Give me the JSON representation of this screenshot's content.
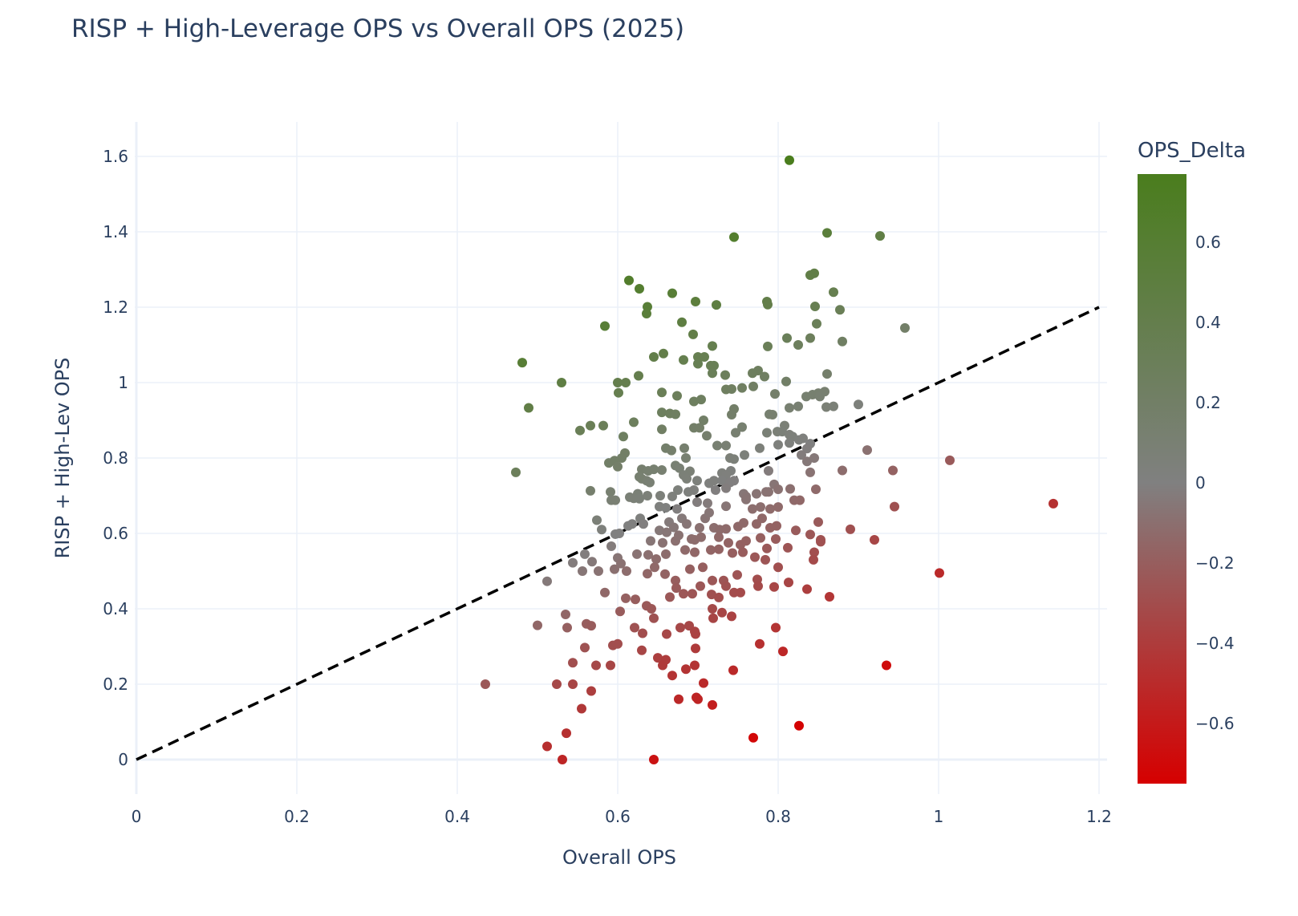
{
  "chart_data": {
    "type": "scatter",
    "title": "RISP + High-Leverage OPS vs Overall OPS (2025)",
    "xlabel": "Overall OPS",
    "ylabel": "RISP + High-Lev OPS",
    "xlim": [
      0,
      1.21
    ],
    "ylim": [
      -0.1,
      1.7
    ],
    "xticks": [
      0,
      0.2,
      0.4,
      0.6,
      0.8,
      1,
      1.2
    ],
    "xtick_labels": [
      "0",
      "0.2",
      "0.4",
      "0.6",
      "0.8",
      "1",
      "1.2"
    ],
    "yticks": [
      0,
      0.2,
      0.4,
      0.6,
      0.8,
      1,
      1.2,
      1.4,
      1.6
    ],
    "ytick_labels": [
      "0",
      "0.2",
      "0.4",
      "0.6",
      "0.8",
      "1",
      "1.2",
      "1.4",
      "1.6"
    ],
    "grid": true,
    "reference_line": {
      "x": [
        0,
        1.2
      ],
      "y": [
        0,
        1.2
      ],
      "style": "dashed",
      "color": "#000000"
    },
    "colorbar": {
      "title": "OPS_Delta",
      "min": -0.75,
      "max": 0.77,
      "ticks": [
        0.6,
        0.4,
        0.2,
        0,
        -0.2,
        -0.4,
        -0.6
      ],
      "tick_labels": [
        "0.6",
        "0.4",
        "0.2",
        "0",
        "−0.2",
        "−0.4",
        "−0.6"
      ],
      "colors": {
        "low": "#d60000",
        "mid": "#808080",
        "high": "#4a7d1d"
      }
    },
    "points": [
      [
        0.814,
        1.59
      ],
      [
        0.745,
        1.386
      ],
      [
        0.861,
        1.397
      ],
      [
        0.927,
        1.389
      ],
      [
        0.845,
        1.29
      ],
      [
        0.84,
        1.285
      ],
      [
        0.614,
        1.271
      ],
      [
        0.627,
        1.249
      ],
      [
        0.668,
        1.237
      ],
      [
        0.869,
        1.24
      ],
      [
        0.697,
        1.215
      ],
      [
        0.786,
        1.215
      ],
      [
        0.723,
        1.206
      ],
      [
        0.637,
        1.201
      ],
      [
        0.787,
        1.207
      ],
      [
        0.846,
        1.202
      ],
      [
        0.877,
        1.193
      ],
      [
        0.636,
        1.183
      ],
      [
        0.68,
        1.16
      ],
      [
        0.584,
        1.15
      ],
      [
        0.848,
        1.156
      ],
      [
        0.958,
        1.145
      ],
      [
        0.694,
        1.128
      ],
      [
        0.811,
        1.118
      ],
      [
        0.84,
        1.118
      ],
      [
        0.88,
        1.109
      ],
      [
        0.718,
        1.097
      ],
      [
        0.787,
        1.096
      ],
      [
        0.825,
        1.1
      ],
      [
        0.657,
        1.077
      ],
      [
        0.645,
        1.068
      ],
      [
        0.7,
        1.068
      ],
      [
        0.708,
        1.068
      ],
      [
        0.682,
        1.06
      ],
      [
        0.716,
        1.045
      ],
      [
        0.72,
        1.045
      ],
      [
        0.7,
        1.05
      ],
      [
        0.481,
        1.053
      ],
      [
        0.734,
        1.02
      ],
      [
        0.626,
        1.018
      ],
      [
        0.718,
        1.025
      ],
      [
        0.775,
        1.032
      ],
      [
        0.768,
        1.025
      ],
      [
        0.783,
        1.016
      ],
      [
        0.861,
        1.023
      ],
      [
        0.53,
        1.0
      ],
      [
        0.6,
        1.0
      ],
      [
        0.61,
        1.0
      ],
      [
        0.81,
        1.003
      ],
      [
        0.601,
        0.973
      ],
      [
        0.655,
        0.974
      ],
      [
        0.674,
        0.965
      ],
      [
        0.735,
        0.982
      ],
      [
        0.742,
        0.983
      ],
      [
        0.755,
        0.986
      ],
      [
        0.769,
        0.99
      ],
      [
        0.796,
        0.97
      ],
      [
        0.835,
        0.963
      ],
      [
        0.843,
        0.968
      ],
      [
        0.85,
        0.972
      ],
      [
        0.858,
        0.976
      ],
      [
        0.489,
        0.933
      ],
      [
        0.695,
        0.95
      ],
      [
        0.704,
        0.955
      ],
      [
        0.745,
        0.93
      ],
      [
        0.742,
        0.915
      ],
      [
        0.789,
        0.916
      ],
      [
        0.793,
        0.915
      ],
      [
        0.814,
        0.933
      ],
      [
        0.825,
        0.937
      ],
      [
        0.852,
        0.963
      ],
      [
        0.86,
        0.935
      ],
      [
        0.869,
        0.937
      ],
      [
        0.9,
        0.942
      ],
      [
        0.655,
        0.921
      ],
      [
        0.665,
        0.918
      ],
      [
        0.672,
        0.916
      ],
      [
        0.62,
        0.895
      ],
      [
        0.707,
        0.9
      ],
      [
        0.755,
        0.882
      ],
      [
        0.553,
        0.873
      ],
      [
        0.566,
        0.886
      ],
      [
        0.582,
        0.886
      ],
      [
        0.607,
        0.857
      ],
      [
        0.655,
        0.876
      ],
      [
        0.695,
        0.88
      ],
      [
        0.702,
        0.88
      ],
      [
        0.711,
        0.859
      ],
      [
        0.747,
        0.867
      ],
      [
        0.786,
        0.867
      ],
      [
        0.799,
        0.87
      ],
      [
        0.808,
        0.886
      ],
      [
        0.805,
        0.87
      ],
      [
        0.814,
        0.862
      ],
      [
        0.818,
        0.857
      ],
      [
        0.826,
        0.848
      ],
      [
        0.831,
        0.852
      ],
      [
        0.84,
        0.838
      ],
      [
        0.66,
        0.826
      ],
      [
        0.667,
        0.82
      ],
      [
        0.683,
        0.826
      ],
      [
        0.724,
        0.833
      ],
      [
        0.735,
        0.833
      ],
      [
        0.777,
        0.826
      ],
      [
        0.8,
        0.835
      ],
      [
        0.814,
        0.84
      ],
      [
        0.836,
        0.825
      ],
      [
        0.911,
        0.821
      ],
      [
        0.609,
        0.813
      ],
      [
        0.605,
        0.8
      ],
      [
        0.589,
        0.787
      ],
      [
        0.596,
        0.793
      ],
      [
        0.6,
        0.777
      ],
      [
        0.685,
        0.8
      ],
      [
        0.74,
        0.8
      ],
      [
        0.745,
        0.797
      ],
      [
        0.758,
        0.808
      ],
      [
        0.829,
        0.808
      ],
      [
        0.836,
        0.791
      ],
      [
        0.845,
        0.8
      ],
      [
        1.014,
        0.794
      ],
      [
        0.473,
        0.762
      ],
      [
        0.63,
        0.77
      ],
      [
        0.638,
        0.766
      ],
      [
        0.645,
        0.77
      ],
      [
        0.655,
        0.768
      ],
      [
        0.672,
        0.78
      ],
      [
        0.677,
        0.773
      ],
      [
        0.69,
        0.765
      ],
      [
        0.741,
        0.766
      ],
      [
        0.73,
        0.76
      ],
      [
        0.735,
        0.755
      ],
      [
        0.745,
        0.74
      ],
      [
        0.788,
        0.766
      ],
      [
        0.88,
        0.767
      ],
      [
        0.943,
        0.767
      ],
      [
        0.84,
        0.762
      ],
      [
        0.63,
        0.745
      ],
      [
        0.636,
        0.74
      ],
      [
        0.64,
        0.735
      ],
      [
        0.627,
        0.75
      ],
      [
        0.682,
        0.755
      ],
      [
        0.686,
        0.745
      ],
      [
        0.699,
        0.74
      ],
      [
        0.714,
        0.733
      ],
      [
        0.72,
        0.74
      ],
      [
        0.73,
        0.74
      ],
      [
        0.74,
        0.735
      ],
      [
        0.795,
        0.73
      ],
      [
        0.788,
        0.71
      ],
      [
        0.8,
        0.717
      ],
      [
        0.847,
        0.717
      ],
      [
        0.815,
        0.718
      ],
      [
        0.566,
        0.713
      ],
      [
        0.591,
        0.71
      ],
      [
        0.625,
        0.705
      ],
      [
        0.637,
        0.7
      ],
      [
        0.653,
        0.7
      ],
      [
        0.668,
        0.698
      ],
      [
        0.675,
        0.715
      ],
      [
        0.688,
        0.71
      ],
      [
        0.695,
        0.715
      ],
      [
        0.722,
        0.715
      ],
      [
        0.735,
        0.72
      ],
      [
        0.757,
        0.705
      ],
      [
        0.76,
        0.698
      ],
      [
        0.773,
        0.705
      ],
      [
        0.785,
        0.71
      ],
      [
        0.82,
        0.688
      ],
      [
        0.827,
        0.688
      ],
      [
        0.76,
        0.69
      ],
      [
        0.592,
        0.688
      ],
      [
        0.597,
        0.688
      ],
      [
        0.615,
        0.696
      ],
      [
        0.62,
        0.693
      ],
      [
        0.627,
        0.692
      ],
      [
        0.652,
        0.671
      ],
      [
        0.66,
        0.668
      ],
      [
        0.674,
        0.665
      ],
      [
        0.699,
        0.683
      ],
      [
        0.712,
        0.68
      ],
      [
        0.735,
        0.672
      ],
      [
        0.768,
        0.665
      ],
      [
        0.778,
        0.67
      ],
      [
        0.79,
        0.665
      ],
      [
        0.8,
        0.67
      ],
      [
        0.945,
        0.671
      ],
      [
        1.143,
        0.679
      ],
      [
        0.574,
        0.635
      ],
      [
        0.58,
        0.61
      ],
      [
        0.597,
        0.598
      ],
      [
        0.613,
        0.62
      ],
      [
        0.618,
        0.625
      ],
      [
        0.628,
        0.64
      ],
      [
        0.632,
        0.625
      ],
      [
        0.652,
        0.608
      ],
      [
        0.664,
        0.63
      ],
      [
        0.67,
        0.616
      ],
      [
        0.68,
        0.64
      ],
      [
        0.686,
        0.625
      ],
      [
        0.702,
        0.615
      ],
      [
        0.709,
        0.64
      ],
      [
        0.714,
        0.655
      ],
      [
        0.72,
        0.615
      ],
      [
        0.727,
        0.61
      ],
      [
        0.735,
        0.612
      ],
      [
        0.75,
        0.618
      ],
      [
        0.757,
        0.628
      ],
      [
        0.773,
        0.625
      ],
      [
        0.78,
        0.64
      ],
      [
        0.79,
        0.615
      ],
      [
        0.798,
        0.62
      ],
      [
        0.85,
        0.63
      ],
      [
        0.89,
        0.611
      ],
      [
        0.822,
        0.608
      ],
      [
        0.602,
        0.6
      ],
      [
        0.641,
        0.58
      ],
      [
        0.656,
        0.575
      ],
      [
        0.661,
        0.603
      ],
      [
        0.672,
        0.58
      ],
      [
        0.676,
        0.595
      ],
      [
        0.692,
        0.585
      ],
      [
        0.696,
        0.583
      ],
      [
        0.704,
        0.59
      ],
      [
        0.726,
        0.59
      ],
      [
        0.738,
        0.575
      ],
      [
        0.753,
        0.57
      ],
      [
        0.76,
        0.58
      ],
      [
        0.778,
        0.588
      ],
      [
        0.786,
        0.56
      ],
      [
        0.797,
        0.585
      ],
      [
        0.84,
        0.597
      ],
      [
        0.853,
        0.583
      ],
      [
        0.92,
        0.583
      ],
      [
        0.559,
        0.545
      ],
      [
        0.592,
        0.566
      ],
      [
        0.6,
        0.535
      ],
      [
        0.624,
        0.545
      ],
      [
        0.638,
        0.543
      ],
      [
        0.648,
        0.532
      ],
      [
        0.66,
        0.545
      ],
      [
        0.684,
        0.556
      ],
      [
        0.696,
        0.55
      ],
      [
        0.716,
        0.556
      ],
      [
        0.726,
        0.558
      ],
      [
        0.743,
        0.548
      ],
      [
        0.756,
        0.55
      ],
      [
        0.771,
        0.537
      ],
      [
        0.784,
        0.53
      ],
      [
        0.812,
        0.562
      ],
      [
        0.845,
        0.55
      ],
      [
        0.853,
        0.578
      ],
      [
        0.844,
        0.53
      ],
      [
        0.544,
        0.522
      ],
      [
        0.568,
        0.525
      ],
      [
        0.596,
        0.505
      ],
      [
        0.604,
        0.52
      ],
      [
        0.611,
        0.5
      ],
      [
        0.637,
        0.493
      ],
      [
        0.646,
        0.51
      ],
      [
        0.659,
        0.492
      ],
      [
        0.672,
        0.475
      ],
      [
        0.69,
        0.505
      ],
      [
        0.706,
        0.51
      ],
      [
        0.718,
        0.475
      ],
      [
        0.732,
        0.475
      ],
      [
        0.749,
        0.49
      ],
      [
        0.774,
        0.478
      ],
      [
        0.8,
        0.51
      ],
      [
        0.813,
        0.47
      ],
      [
        0.512,
        0.473
      ],
      [
        0.556,
        0.5
      ],
      [
        0.576,
        0.5
      ],
      [
        0.584,
        0.443
      ],
      [
        0.61,
        0.428
      ],
      [
        0.622,
        0.425
      ],
      [
        0.636,
        0.408
      ],
      [
        0.642,
        0.4
      ],
      [
        0.665,
        0.431
      ],
      [
        0.673,
        0.455
      ],
      [
        0.682,
        0.44
      ],
      [
        0.693,
        0.44
      ],
      [
        0.703,
        0.46
      ],
      [
        0.717,
        0.438
      ],
      [
        0.726,
        0.43
      ],
      [
        0.735,
        0.46
      ],
      [
        0.745,
        0.443
      ],
      [
        0.753,
        0.443
      ],
      [
        0.775,
        0.46
      ],
      [
        0.795,
        0.458
      ],
      [
        0.836,
        0.452
      ],
      [
        0.864,
        0.432
      ],
      [
        0.718,
        0.4
      ],
      [
        0.5,
        0.356
      ],
      [
        0.535,
        0.385
      ],
      [
        0.537,
        0.35
      ],
      [
        0.561,
        0.36
      ],
      [
        0.567,
        0.355
      ],
      [
        0.603,
        0.393
      ],
      [
        0.621,
        0.35
      ],
      [
        0.631,
        0.335
      ],
      [
        0.645,
        0.375
      ],
      [
        0.678,
        0.35
      ],
      [
        0.689,
        0.355
      ],
      [
        0.696,
        0.34
      ],
      [
        0.719,
        0.375
      ],
      [
        0.73,
        0.39
      ],
      [
        0.742,
        0.38
      ],
      [
        0.797,
        0.35
      ],
      [
        0.559,
        0.297
      ],
      [
        0.594,
        0.303
      ],
      [
        0.591,
        0.25
      ],
      [
        0.6,
        0.307
      ],
      [
        0.63,
        0.29
      ],
      [
        0.65,
        0.27
      ],
      [
        0.66,
        0.265
      ],
      [
        0.697,
        0.295
      ],
      [
        0.777,
        0.307
      ],
      [
        0.806,
        0.287
      ],
      [
        0.656,
        0.25
      ],
      [
        0.685,
        0.24
      ],
      [
        0.696,
        0.25
      ],
      [
        0.935,
        0.25
      ],
      [
        0.544,
        0.257
      ],
      [
        0.573,
        0.25
      ],
      [
        0.435,
        0.2
      ],
      [
        0.524,
        0.2
      ],
      [
        0.544,
        0.2
      ],
      [
        0.567,
        0.182
      ],
      [
        0.668,
        0.223
      ],
      [
        0.707,
        0.203
      ],
      [
        0.744,
        0.237
      ],
      [
        0.555,
        0.135
      ],
      [
        0.676,
        0.16
      ],
      [
        0.698,
        0.165
      ],
      [
        0.7,
        0.16
      ],
      [
        0.718,
        0.145
      ],
      [
        0.512,
        0.035
      ],
      [
        0.536,
        0.07
      ],
      [
        0.531,
        0.0
      ],
      [
        0.645,
        0.0
      ],
      [
        0.769,
        0.058
      ],
      [
        0.826,
        0.09
      ],
      [
        1.001,
        0.495
      ],
      [
        0.697,
        0.333
      ],
      [
        0.661,
        0.333
      ]
    ]
  }
}
